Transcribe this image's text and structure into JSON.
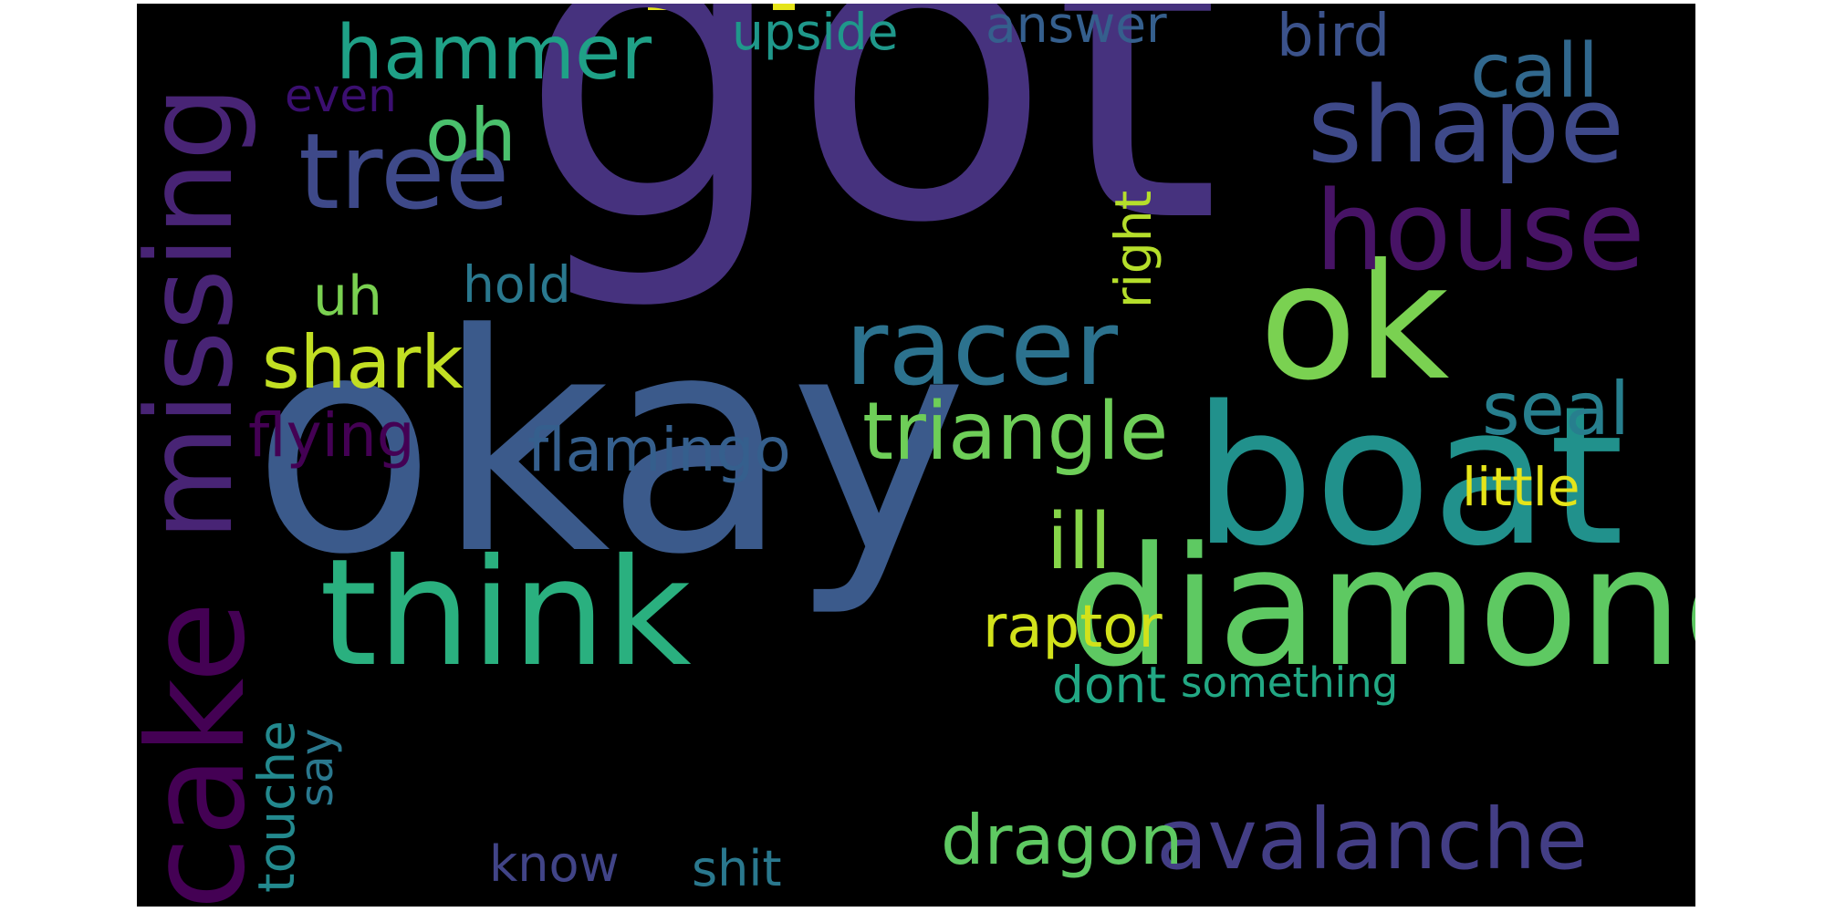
{
  "words": [
    {
      "id": "got",
      "text": "got",
      "color": "#46327e"
    },
    {
      "id": "okay",
      "text": "okay",
      "color": "#3b5a8b"
    },
    {
      "id": "boat",
      "text": "boat",
      "color": "#21918c"
    },
    {
      "id": "diamond",
      "text": "diamond",
      "color": "#5ec962"
    },
    {
      "id": "think",
      "text": "think",
      "color": "#2ab07f"
    },
    {
      "id": "ok",
      "text": "ok",
      "color": "#7ad151"
    },
    {
      "id": "cake",
      "text": "cake",
      "color": "#440154"
    },
    {
      "id": "missing",
      "text": "missing",
      "color": "#482475"
    },
    {
      "id": "house",
      "text": "house",
      "color": "#471365"
    },
    {
      "id": "shape",
      "text": "shape",
      "color": "#3e4989"
    },
    {
      "id": "tree",
      "text": "tree",
      "color": "#3e4989"
    },
    {
      "id": "racer",
      "text": "racer",
      "color": "#2c728e"
    },
    {
      "id": "avalanche",
      "text": "avalanche",
      "color": "#433e85"
    },
    {
      "id": "triangle",
      "text": "triangle",
      "color": "#6ece58"
    },
    {
      "id": "hammer",
      "text": "hammer",
      "color": "#1fa187"
    },
    {
      "id": "call",
      "text": "call",
      "color": "#31688e"
    },
    {
      "id": "shark",
      "text": "shark",
      "color": "#c2df23"
    },
    {
      "id": "seal",
      "text": "seal",
      "color": "#277f8e"
    },
    {
      "id": "dragon",
      "text": "dragon",
      "color": "#5ec962"
    },
    {
      "id": "ill",
      "text": "ill",
      "color": "#86d549"
    },
    {
      "id": "raptor",
      "text": "raptor",
      "color": "#d2e21b"
    },
    {
      "id": "flamingo",
      "text": "flamingo",
      "color": "#355f8d"
    },
    {
      "id": "oh",
      "text": "oh",
      "color": "#4ac16d"
    },
    {
      "id": "flying",
      "text": "flying",
      "color": "#440154"
    },
    {
      "id": "little",
      "text": "little",
      "color": "#e5e419"
    },
    {
      "id": "bird",
      "text": "bird",
      "color": "#3b528b"
    },
    {
      "id": "upside",
      "text": "upside",
      "color": "#1f988b"
    },
    {
      "id": "answer",
      "text": "answer",
      "color": "#355f8d"
    },
    {
      "id": "right",
      "text": "right",
      "color": "#b5de2b"
    },
    {
      "id": "hold",
      "text": "hold",
      "color": "#2a788e"
    },
    {
      "id": "uh",
      "text": "uh",
      "color": "#7ad151"
    },
    {
      "id": "dont",
      "text": "dont",
      "color": "#22a884"
    },
    {
      "id": "something",
      "text": "something",
      "color": "#22a884"
    },
    {
      "id": "touche",
      "text": "touche",
      "color": "#23898e"
    },
    {
      "id": "say",
      "text": "say",
      "color": "#2a788e"
    },
    {
      "id": "know",
      "text": "know",
      "color": "#414487"
    },
    {
      "id": "shit",
      "text": "shit",
      "color": "#2a788e"
    },
    {
      "id": "even",
      "text": "even",
      "color": "#3b0f70"
    }
  ],
  "colors": {
    "background": "#000000",
    "page": "#ffffff",
    "clipped_top_marks": "#e5e419"
  }
}
